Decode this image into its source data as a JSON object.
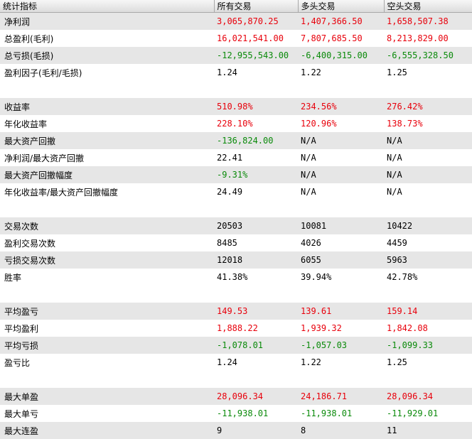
{
  "colors": {
    "positive": "#e8000b",
    "negative": "#0a8a0a",
    "neutral": "#000000",
    "row_shade": "#e6e6e6"
  },
  "headers": [
    "统计指标",
    "所有交易",
    "多头交易",
    "空头交易"
  ],
  "groups": [
    {
      "rows": [
        {
          "label": "净利润",
          "values": [
            "3,065,870.25",
            "1,407,366.50",
            "1,658,507.38"
          ],
          "colors": [
            "red",
            "red",
            "red"
          ]
        },
        {
          "label": "总盈利(毛利)",
          "values": [
            "16,021,541.00",
            "7,807,685.50",
            "8,213,829.00"
          ],
          "colors": [
            "red",
            "red",
            "red"
          ]
        },
        {
          "label": "总亏损(毛损)",
          "values": [
            "-12,955,543.00",
            "-6,400,315.00",
            "-6,555,328.50"
          ],
          "colors": [
            "green",
            "green",
            "green"
          ]
        },
        {
          "label": "盈利因子(毛利/毛损)",
          "values": [
            "1.24",
            "1.22",
            "1.25"
          ],
          "colors": [
            "black",
            "black",
            "black"
          ]
        }
      ]
    },
    {
      "rows": [
        {
          "label": "收益率",
          "values": [
            "510.98%",
            "234.56%",
            "276.42%"
          ],
          "colors": [
            "red",
            "red",
            "red"
          ]
        },
        {
          "label": "年化收益率",
          "values": [
            "228.10%",
            "120.96%",
            "138.73%"
          ],
          "colors": [
            "red",
            "red",
            "red"
          ]
        },
        {
          "label": "最大资产回撤",
          "values": [
            "-136,824.00",
            "N/A",
            "N/A"
          ],
          "colors": [
            "green",
            "black",
            "black"
          ]
        },
        {
          "label": "净利润/最大资产回撤",
          "values": [
            "22.41",
            "N/A",
            "N/A"
          ],
          "colors": [
            "black",
            "black",
            "black"
          ]
        },
        {
          "label": "最大资产回撤幅度",
          "values": [
            "-9.31%",
            "N/A",
            "N/A"
          ],
          "colors": [
            "green",
            "black",
            "black"
          ]
        },
        {
          "label": "年化收益率/最大资产回撤幅度",
          "values": [
            "24.49",
            "N/A",
            "N/A"
          ],
          "colors": [
            "black",
            "black",
            "black"
          ]
        }
      ]
    },
    {
      "rows": [
        {
          "label": "交易次数",
          "values": [
            "20503",
            "10081",
            "10422"
          ],
          "colors": [
            "black",
            "black",
            "black"
          ]
        },
        {
          "label": "盈利交易次数",
          "values": [
            "8485",
            "4026",
            "4459"
          ],
          "colors": [
            "black",
            "black",
            "black"
          ]
        },
        {
          "label": "亏损交易次数",
          "values": [
            "12018",
            "6055",
            "5963"
          ],
          "colors": [
            "black",
            "black",
            "black"
          ]
        },
        {
          "label": "胜率",
          "values": [
            "41.38%",
            "39.94%",
            "42.78%"
          ],
          "colors": [
            "black",
            "black",
            "black"
          ]
        }
      ]
    },
    {
      "rows": [
        {
          "label": "平均盈亏",
          "values": [
            "149.53",
            "139.61",
            "159.14"
          ],
          "colors": [
            "red",
            "red",
            "red"
          ]
        },
        {
          "label": "平均盈利",
          "values": [
            "1,888.22",
            "1,939.32",
            "1,842.08"
          ],
          "colors": [
            "red",
            "red",
            "red"
          ]
        },
        {
          "label": "平均亏损",
          "values": [
            "-1,078.01",
            "-1,057.03",
            "-1,099.33"
          ],
          "colors": [
            "green",
            "green",
            "green"
          ]
        },
        {
          "label": "盈亏比",
          "values": [
            "1.24",
            "1.22",
            "1.25"
          ],
          "colors": [
            "black",
            "black",
            "black"
          ]
        }
      ]
    },
    {
      "rows": [
        {
          "label": "最大单盈",
          "values": [
            "28,096.34",
            "24,186.71",
            "28,096.34"
          ],
          "colors": [
            "red",
            "red",
            "red"
          ]
        },
        {
          "label": "最大单亏",
          "values": [
            "-11,938.01",
            "-11,938.01",
            "-11,929.01"
          ],
          "colors": [
            "green",
            "green",
            "green"
          ]
        },
        {
          "label": "最大连盈",
          "values": [
            "9",
            "8",
            "11"
          ],
          "colors": [
            "black",
            "black",
            "black"
          ]
        }
      ]
    }
  ]
}
